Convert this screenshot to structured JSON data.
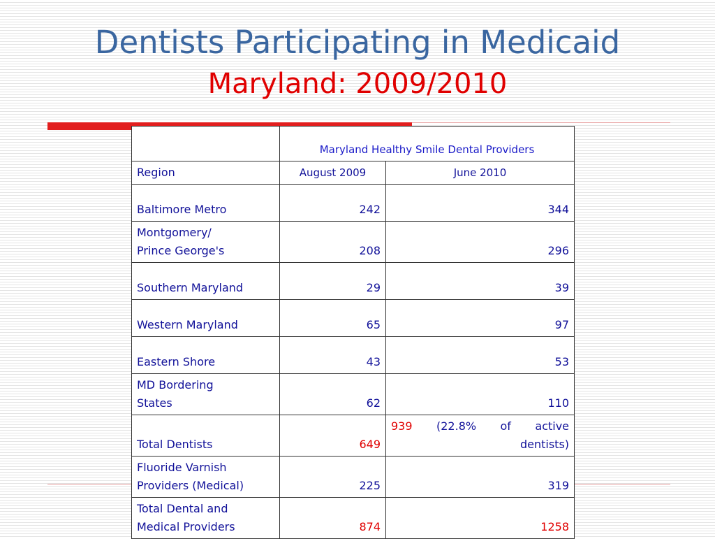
{
  "slide": {
    "title": "Dentists Participating in Medicaid",
    "subtitle": "Maryland: 2009/2010"
  },
  "table": {
    "group_header": "Maryland Healthy Smile Dental Providers",
    "region_header": "Region",
    "columns": [
      "August 2009",
      "June 2010"
    ],
    "rows": [
      {
        "region_lines": [
          "Baltimore Metro"
        ],
        "aug": "242",
        "jun": "344"
      },
      {
        "region_lines": [
          "Montgomery/",
          "Prince George's"
        ],
        "aug": "208",
        "jun": "296"
      },
      {
        "region_lines": [
          "Southern Maryland"
        ],
        "aug": "29",
        "jun": "39"
      },
      {
        "region_lines": [
          "Western Maryland"
        ],
        "aug": "65",
        "jun": "97"
      },
      {
        "region_lines": [
          "Eastern Shore"
        ],
        "aug": "43",
        "jun": "53"
      },
      {
        "region_lines": [
          "MD Bordering",
          "States"
        ],
        "aug": "62",
        "jun": "110"
      },
      {
        "region_lines": [
          "Total Dentists"
        ],
        "aug": "649",
        "jun": "939",
        "jun_note_line1": "(22.8% of active",
        "jun_note_line2": "dentists)"
      },
      {
        "region_lines": [
          "Fluoride Varnish",
          "Providers (Medical)"
        ],
        "aug": "225",
        "jun": "319"
      },
      {
        "region_lines": [
          "Total Dental and",
          "Medical Providers"
        ],
        "aug": "874",
        "jun": "1258"
      }
    ]
  },
  "colors": {
    "title": "#3a66a0",
    "subtitle": "#e00000",
    "table_text": "#111199",
    "highlight": "#e00000",
    "accent_bar": "#e21e1e"
  }
}
